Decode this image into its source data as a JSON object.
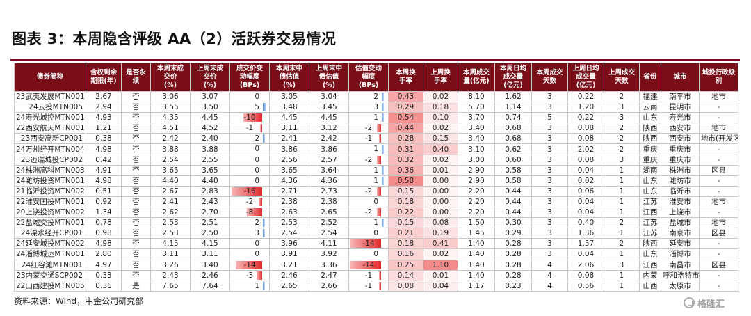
{
  "title": "图表 3：本周隐含评级 AA（2）活跃券交易情况",
  "source": "资料来源：Wind，中金公司研究部",
  "watermark": "格隆汇",
  "colors": {
    "header_bg": "#7a0e18",
    "header_text": "#ffffff",
    "bar_negative": "#e02b2b",
    "bar_positive": "#5b8fd6",
    "heat": "#f08080"
  },
  "columns": [
    "债券简称",
    "含权剩余\n期限(年)",
    "是否永\n续",
    "本周末成\n交价\n(%)",
    "上周末成\n交价\n(%)",
    "成交价变\n动幅度\n(BPs)",
    "本周末中\n债估值\n(%)",
    "上周末中\n债估值\n(%)",
    "估值变动\n幅度\n(BPs)",
    "本周换\n手率",
    "上周换\n手率",
    "本周成交\n量(亿元)",
    "本周日均\n成交量\n(亿元)",
    "本周成交\n天数",
    "上周日均\n成交量\n(亿元)",
    "上周成交\n天数",
    "省份",
    "城市",
    "城投行政级\n别"
  ],
  "rows": [
    {
      "name": "23武夷发展MTN001",
      "term": "2.67",
      "perp": "否",
      "tp": "3.06",
      "lp": "3.07",
      "pchg": "0",
      "tv": "3.05",
      "lv": "3.04",
      "vchg": "2",
      "tto": "0.43",
      "lto": "0.02",
      "vol": "8.10",
      "tavg": "1.62",
      "tdays": "3",
      "lavg": "0.22",
      "ldays": "2",
      "prov": "福建",
      "city": "南平市",
      "level": "地市"
    },
    {
      "name": "24云投MTN005",
      "term": "2.94",
      "perp": "否",
      "tp": "3.55",
      "lp": "3.50",
      "pchg": "5",
      "tv": "3.48",
      "lv": "3.45",
      "vchg": "3",
      "tto": "0.29",
      "lto": "0.18",
      "vol": "5.70",
      "tavg": "1.14",
      "tdays": "3",
      "lavg": "1.20",
      "ldays": "3",
      "prov": "云南",
      "city": "昆明市",
      "level": "-"
    },
    {
      "name": "24寿光城控MTN001",
      "term": "4.93",
      "perp": "否",
      "tp": "4.35",
      "lp": "4.45",
      "pchg": "-10",
      "tv": "4.45",
      "lv": "4.45",
      "vchg": "1",
      "tto": "0.54",
      "lto": "0.10",
      "vol": "3.70",
      "tavg": "0.74",
      "tdays": "5",
      "lavg": "0.22",
      "ldays": "3",
      "prov": "山东",
      "city": "寿光市",
      "level": "-"
    },
    {
      "name": "22西安航天MTN001",
      "term": "1.21",
      "perp": "否",
      "tp": "4.51",
      "lp": "4.52",
      "pchg": "-1",
      "tv": "3.11",
      "lv": "3.12",
      "vchg": "-2",
      "tto": "0.44",
      "lto": "0.02",
      "vol": "3.40",
      "tavg": "0.68",
      "tdays": "3",
      "lavg": "0.08",
      "ldays": "2",
      "prov": "陕西",
      "city": "西安市",
      "level": "地市"
    },
    {
      "name": "23西安高新CP001",
      "term": "0.38",
      "perp": "否",
      "tp": "2.42",
      "lp": "2.40",
      "pchg": "2",
      "tv": "2.41",
      "lv": "2.42",
      "vchg": "-1",
      "tto": "0.28",
      "lto": "0.15",
      "vol": "3.40",
      "tavg": "0.68",
      "tdays": "3",
      "lavg": "0.08",
      "ldays": "2",
      "prov": "陕西",
      "city": "西安市",
      "level": "地市(开发区)"
    },
    {
      "name": "24万州经开MTN004",
      "term": "4.98",
      "perp": "否",
      "tp": "3.88",
      "lp": "3.88",
      "pchg": "0",
      "tv": "3.86",
      "lv": "3.86",
      "vchg": "1",
      "tto": "0.31",
      "lto": "0.40",
      "vol": "3.10",
      "tavg": "0.62",
      "tdays": "3",
      "lavg": "2.02",
      "ldays": "2",
      "prov": "重庆",
      "city": "重庆市",
      "level": "-"
    },
    {
      "name": "23迈瑞城投CP002",
      "term": "0.42",
      "perp": "否",
      "tp": "2.54",
      "lp": "2.55",
      "pchg": "0",
      "tv": "2.56",
      "lv": "2.57",
      "vchg": "-2",
      "tto": "0.32",
      "lto": "0.02",
      "vol": "3.00",
      "tavg": "0.60",
      "tdays": "3",
      "lavg": "0.08",
      "ldays": "3",
      "prov": "重庆",
      "city": "重庆市",
      "level": "-"
    },
    {
      "name": "24株洲高科MTN003",
      "term": "4.91",
      "perp": "否",
      "tp": "3.65",
      "lp": "3.65",
      "pchg": "0",
      "tv": "3.65",
      "lv": "3.64",
      "vchg": "1",
      "tto": "0.36",
      "lto": "0.01",
      "vol": "2.90",
      "tavg": "0.58",
      "tdays": "3",
      "lavg": "0.04",
      "ldays": "1",
      "prov": "湖南",
      "city": "株洲市",
      "level": "区县"
    },
    {
      "name": "24潍坊投资MTN001",
      "term": "4.98",
      "perp": "否",
      "tp": "4.40",
      "lp": "4.40",
      "pchg": "0",
      "tv": "4.36",
      "lv": "4.36",
      "vchg": "1",
      "tto": "0.58",
      "lto": "0.00",
      "vol": "2.90",
      "tavg": "0.58",
      "tdays": "3",
      "lavg": "0.02",
      "ldays": "1",
      "prov": "山东",
      "city": "潍坊市",
      "level": "-"
    },
    {
      "name": "21临沂投资MTN002",
      "term": "0.51",
      "perp": "否",
      "tp": "2.67",
      "lp": "2.83",
      "pchg": "-16",
      "tv": "2.71",
      "lv": "2.73",
      "vchg": "-2",
      "tto": "0.15",
      "lto": "0.00",
      "vol": "2.20",
      "tavg": "0.44",
      "tdays": "3",
      "lavg": "0.06",
      "ldays": "1",
      "prov": "山东",
      "city": "临沂市",
      "level": "-"
    },
    {
      "name": "22淮安国投MTN001",
      "term": "0.92",
      "perp": "否",
      "tp": "2.41",
      "lp": "2.43",
      "pchg": "-2",
      "tv": "2.38",
      "lv": "2.38",
      "vchg": "0",
      "tto": "0.18",
      "lto": "0.00",
      "vol": "2.20",
      "tavg": "0.44",
      "tdays": "3",
      "lavg": "0.04",
      "ldays": "1",
      "prov": "江苏",
      "city": "淮安市",
      "level": "地市"
    },
    {
      "name": "20上饶投资MTN002",
      "term": "1.34",
      "perp": "否",
      "tp": "2.62",
      "lp": "2.70",
      "pchg": "-8",
      "tv": "2.63",
      "lv": "2.65",
      "vchg": "-2",
      "tto": "0.22",
      "lto": "0.00",
      "vol": "2.20",
      "tavg": "0.44",
      "tdays": "3",
      "lavg": "0.04",
      "ldays": "1",
      "prov": "江西",
      "city": "上饶市",
      "level": "-"
    },
    {
      "name": "22盐城交投MTN001",
      "term": "0.78",
      "perp": "否",
      "tp": "2.53",
      "lp": "2.51",
      "pchg": "2",
      "tv": "2.53",
      "lv": "2.52",
      "vchg": "1",
      "tto": "0.15",
      "lto": "0.08",
      "vol": "1.50",
      "tavg": "0.30",
      "tdays": "3",
      "lavg": "0.40",
      "ldays": "2",
      "prov": "江苏",
      "city": "盐城市",
      "level": "地市"
    },
    {
      "name": "24溧水经开CP001",
      "term": "0.98",
      "perp": "否",
      "tp": "2.53",
      "lp": "2.50",
      "pchg": "3",
      "tv": "2.54",
      "lv": "2.54",
      "vchg": "0",
      "tto": "0.21",
      "lto": "0.19",
      "vol": "1.45",
      "tavg": "0.29",
      "tdays": "3",
      "lavg": "1.36",
      "ldays": "1",
      "prov": "江苏",
      "city": "南京市",
      "level": "区县"
    },
    {
      "name": "24延安城投MTN002",
      "term": "4.98",
      "perp": "否",
      "tp": "4.15",
      "lp": "4.15",
      "pchg": "0",
      "tv": "3.96",
      "lv": "4.11",
      "vchg": "-14",
      "tto": "0.18",
      "lto": "0.41",
      "vol": "1.40",
      "tavg": "0.28",
      "tdays": "3",
      "lavg": "1.57",
      "ldays": "2",
      "prov": "陕西",
      "city": "延安市",
      "level": "-"
    },
    {
      "name": "24淄博城运MTN001",
      "term": "2.80",
      "perp": "否",
      "tp": "3.11",
      "lp": "3.11",
      "pchg": "0",
      "tv": "3.91",
      "lv": "3.92",
      "vchg": "0",
      "tto": "0.16",
      "lto": "0.02",
      "vol": "1.40",
      "tavg": "0.28",
      "tdays": "3",
      "lavg": "0.04",
      "ldays": "1",
      "prov": "山东",
      "city": "淄博市",
      "level": "-"
    },
    {
      "name": "24红谷滩MTN001",
      "term": "4.97",
      "perp": "否",
      "tp": "3.26",
      "lp": "3.40",
      "pchg": "-14",
      "tv": "3.21",
      "lv": "3.36",
      "vchg": "-14",
      "tto": "0.25",
      "lto": "1.10",
      "vol": "1.40",
      "tavg": "0.28",
      "tdays": "4",
      "lavg": "2.06",
      "ldays": "3",
      "prov": "江西",
      "city": "南昌市",
      "level": "区县"
    },
    {
      "name": "23内蒙交通SCP002",
      "term": "0.33",
      "perp": "否",
      "tp": "2.43",
      "lp": "2.46",
      "pchg": "-3",
      "tv": "2.46",
      "lv": "2.47",
      "vchg": "-1",
      "tto": "0.14",
      "lto": "0.01",
      "vol": "1.40",
      "tavg": "0.28",
      "tdays": "4",
      "lavg": "0.08",
      "ldays": "1",
      "prov": "内蒙",
      "city": "呼和浩特市",
      "level": "-"
    },
    {
      "name": "22山西建投MTN005",
      "term": "0.36",
      "perp": "是",
      "tp": "7.65",
      "lp": "7.64",
      "pchg": "1",
      "tv": "2.65",
      "lv": "2.66",
      "vchg": "-1",
      "tto": "0.08",
      "lto": "0.04",
      "vol": "1.17",
      "tavg": "0.23",
      "tdays": "4",
      "lavg": "0.56",
      "ldays": "1",
      "prov": "山西",
      "city": "太原市",
      "level": "-"
    }
  ]
}
